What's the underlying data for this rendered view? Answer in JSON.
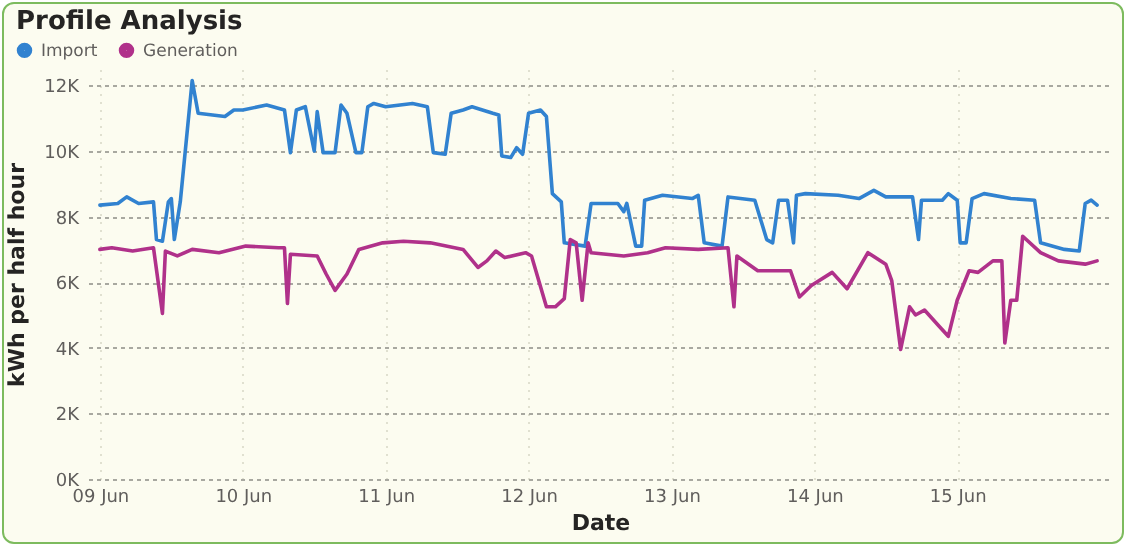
{
  "chart_data": {
    "type": "line",
    "title": "Profile Analysis",
    "xlabel": "Date",
    "ylabel": "kWh per half hour",
    "xlim": [
      "--06-08T22:00",
      "--06-16T02:00"
    ],
    "xticks": [
      {
        "value": "--06-09",
        "label": "09 Jun"
      },
      {
        "value": "--06-10",
        "label": "10 Jun"
      },
      {
        "value": "--06-11",
        "label": "11 Jun"
      },
      {
        "value": "--06-12",
        "label": "12 Jun"
      },
      {
        "value": "--06-13",
        "label": "13 Jun"
      },
      {
        "value": "--06-14",
        "label": "14 Jun"
      },
      {
        "value": "--06-15",
        "label": "15 Jun"
      }
    ],
    "ylim": [
      0,
      12500
    ],
    "yticks": [
      {
        "value": 0,
        "label": "0K"
      },
      {
        "value": 2000,
        "label": "2K"
      },
      {
        "value": 4000,
        "label": "4K"
      },
      {
        "value": 6000,
        "label": "6K"
      },
      {
        "value": 8000,
        "label": "8K"
      },
      {
        "value": 10000,
        "label": "10K"
      },
      {
        "value": 12000,
        "label": "12K"
      }
    ],
    "grid": true,
    "legend": "top left",
    "marker": "none",
    "line_style": "solid",
    "series": [
      {
        "name": "Import",
        "color": "#3182d0",
        "x": [
          "--06-09T00:00",
          "--06-09T03:00",
          "--06-09T04:30",
          "--06-09T06:30",
          "--06-09T09:00",
          "--06-09T09:30",
          "--06-09T10:30",
          "--06-09T11:30",
          "--06-09T12:00",
          "--06-09T12:30",
          "--06-09T13:30",
          "--06-09T15:30",
          "--06-09T16:30",
          "--06-09T21:00",
          "--06-09T22:30",
          "--06-10T00:00",
          "--06-10T04:00",
          "--06-10T07:00",
          "--06-10T08:00",
          "--06-10T09:00",
          "--06-10T10:30",
          "--06-10T12:00",
          "--06-10T12:30",
          "--06-10T13:30",
          "--06-10T15:30",
          "--06-10T16:30",
          "--06-10T17:30",
          "--06-10T19:00",
          "--06-10T20:00",
          "--06-10T21:00",
          "--06-10T22:00",
          "--06-11T00:00",
          "--06-11T04:30",
          "--06-11T07:00",
          "--06-11T08:00",
          "--06-11T10:00",
          "--06-11T11:00",
          "--06-11T13:00",
          "--06-11T14:30",
          "--06-11T18:00",
          "--06-11T19:00",
          "--06-11T19:30",
          "--06-11T21:00",
          "--06-11T22:00",
          "--06-11T23:00",
          "--06-12T00:00",
          "--06-12T02:00",
          "--06-12T03:00",
          "--06-12T04:00",
          "--06-12T05:30",
          "--06-12T06:00",
          "--06-12T09:30",
          "--06-12T10:30",
          "--06-12T15:00",
          "--06-12T16:00",
          "--06-12T16:30",
          "--06-12T18:00",
          "--06-12T19:00",
          "--06-12T19:30",
          "--06-12T22:30",
          "--06-13T03:30",
          "--06-13T04:30",
          "--06-13T05:30",
          "--06-13T08:30",
          "--06-13T09:30",
          "--06-13T14:00",
          "--06-13T16:00",
          "--06-13T17:00",
          "--06-13T18:00",
          "--06-13T19:30",
          "--06-13T20:30",
          "--06-13T21:00",
          "--06-13T22:30",
          "--06-14T04:00",
          "--06-14T07:30",
          "--06-14T10:00",
          "--06-14T12:00",
          "--06-14T16:30",
          "--06-14T17:30",
          "--06-14T18:00",
          "--06-14T21:30",
          "--06-14T22:30",
          "--06-15T00:00",
          "--06-15T00:30",
          "--06-15T01:30",
          "--06-15T02:30",
          "--06-15T04:30",
          "--06-15T09:00",
          "--06-15T13:00",
          "--06-15T14:00",
          "--06-15T18:00",
          "--06-15T20:30",
          "--06-15T21:30",
          "--06-15T22:30",
          "--06-15T23:30"
        ],
        "values": [
          8350,
          8400,
          8600,
          8400,
          8450,
          7300,
          7250,
          8450,
          8550,
          7300,
          8450,
          12150,
          11150,
          11050,
          11250,
          11250,
          11400,
          11250,
          9950,
          11250,
          11350,
          10000,
          11200,
          9950,
          9950,
          11400,
          11150,
          9950,
          9950,
          11350,
          11450,
          11350,
          11450,
          11350,
          9950,
          9900,
          11150,
          11250,
          11350,
          11150,
          11100,
          9850,
          9800,
          10100,
          9900,
          11150,
          11250,
          11050,
          8700,
          8450,
          7200,
          7100,
          8400,
          8400,
          8150,
          8400,
          7100,
          7100,
          8500,
          8650,
          8550,
          8650,
          7200,
          7100,
          8600,
          8500,
          7300,
          7200,
          8500,
          8500,
          7200,
          8650,
          8700,
          8650,
          8550,
          8800,
          8600,
          8600,
          7300,
          8500,
          8500,
          8700,
          8500,
          7200,
          7200,
          8550,
          8700,
          8550,
          8500,
          7200,
          7000,
          6950,
          8400,
          8500,
          8350
        ]
      },
      {
        "name": "Generation",
        "color": "#b0318a",
        "x": [
          "--06-09T00:00",
          "--06-09T02:00",
          "--06-09T05:30",
          "--06-09T09:00",
          "--06-09T10:30",
          "--06-09T11:00",
          "--06-09T13:00",
          "--06-09T15:30",
          "--06-09T20:00",
          "--06-10T00:30",
          "--06-10T06:00",
          "--06-10T07:00",
          "--06-10T07:30",
          "--06-10T08:00",
          "--06-10T12:30",
          "--06-10T14:00",
          "--06-10T15:30",
          "--06-10T17:30",
          "--06-10T19:30",
          "--06-10T23:30",
          "--06-11T03:00",
          "--06-11T07:30",
          "--06-11T13:00",
          "--06-11T15:30",
          "--06-11T17:00",
          "--06-11T18:30",
          "--06-11T20:00",
          "--06-11T23:30",
          "--06-12T00:30",
          "--06-12T03:00",
          "--06-12T04:30",
          "--06-12T06:00",
          "--06-12T07:00",
          "--06-12T08:00",
          "--06-12T09:00",
          "--06-12T10:00",
          "--06-12T10:30",
          "--06-12T16:00",
          "--06-12T20:00",
          "--06-12T23:00",
          "--06-13T04:30",
          "--06-13T09:30",
          "--06-13T10:30",
          "--06-13T11:00",
          "--06-13T14:30",
          "--06-13T20:00",
          "--06-13T21:30",
          "--06-13T23:30",
          "--06-14T03:00",
          "--06-14T05:30",
          "--06-14T09:00",
          "--06-14T12:00",
          "--06-14T13:00",
          "--06-14T14:30",
          "--06-14T16:00",
          "--06-14T17:00",
          "--06-14T18:30",
          "--06-14T21:00",
          "--06-14T22:30",
          "--06-15T00:00",
          "--06-15T02:00",
          "--06-15T03:30",
          "--06-15T06:00",
          "--06-15T07:30",
          "--06-15T08:00",
          "--06-15T09:00",
          "--06-15T10:00",
          "--06-15T11:00",
          "--06-15T14:00",
          "--06-15T17:00",
          "--06-15T21:30",
          "--06-15T23:30"
        ],
        "values": [
          7000,
          7050,
          6950,
          7050,
          5050,
          6950,
          6800,
          7000,
          6900,
          7100,
          7050,
          7050,
          5350,
          6850,
          6800,
          6250,
          5750,
          6250,
          7000,
          7200,
          7250,
          7200,
          7000,
          6450,
          6650,
          6950,
          6750,
          6900,
          6800,
          5250,
          5250,
          5500,
          7300,
          7200,
          5450,
          7200,
          6900,
          6800,
          6900,
          7050,
          7000,
          7050,
          5250,
          6800,
          6350,
          6350,
          5550,
          5900,
          6300,
          5800,
          6900,
          6550,
          6050,
          3950,
          5250,
          5000,
          5150,
          4650,
          4350,
          5450,
          6350,
          6300,
          6650,
          6650,
          4150,
          5450,
          5450,
          7400,
          6900,
          6650,
          6550,
          6650
        ]
      }
    ]
  }
}
